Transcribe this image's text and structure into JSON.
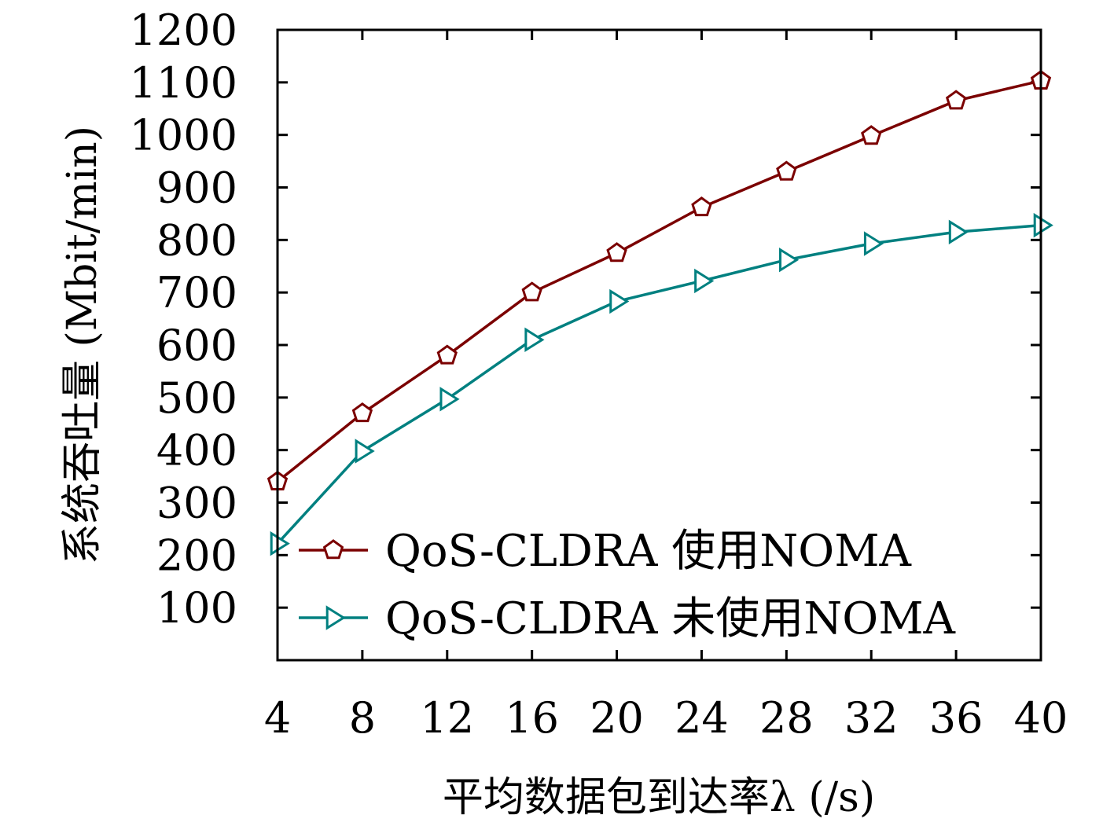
{
  "chart_data": {
    "type": "line",
    "xlabel": "平均数据包到达率λ (/s)",
    "ylabel": "系统吞吐量 (Mbit/min)",
    "x": [
      4,
      8,
      12,
      16,
      20,
      24,
      28,
      32,
      36,
      40
    ],
    "xlim": [
      4,
      40
    ],
    "ylim": [
      0,
      1200
    ],
    "xticks": [
      "4",
      "8",
      "12",
      "16",
      "20",
      "24",
      "28",
      "32",
      "36",
      "40"
    ],
    "yticks": [
      "100",
      "200",
      "300",
      "400",
      "500",
      "600",
      "700",
      "800",
      "900",
      "1000",
      "1100",
      "1200"
    ],
    "legend_position": "bottom-right",
    "grid": false,
    "series": [
      {
        "name": "QoS-CLDRA 使用NOMA",
        "color": "#7b0000",
        "marker": "pentagon",
        "values": [
          340,
          470,
          580,
          700,
          775,
          862,
          930,
          998,
          1065,
          1103
        ]
      },
      {
        "name": "QoS-CLDRA 未使用NOMA",
        "color": "#008080",
        "marker": "triangle-right",
        "values": [
          222,
          398,
          497,
          610,
          683,
          722,
          762,
          793,
          815,
          828
        ]
      }
    ]
  }
}
